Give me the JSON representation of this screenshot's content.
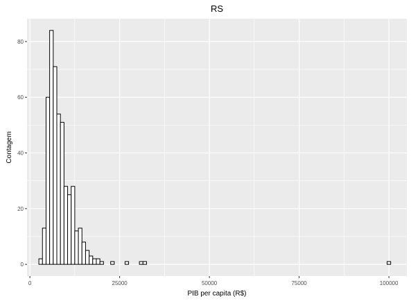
{
  "chart_data": {
    "type": "bar",
    "subtype": "histogram",
    "title": "RS",
    "xlabel": "PIB per capita (R$)",
    "ylabel": "Contagem",
    "xlim": [
      -800,
      105000
    ],
    "ylim": [
      -4.2,
      88.2
    ],
    "x_ticks": [
      0,
      25000,
      50000,
      75000,
      100000
    ],
    "x_tick_labels": [
      "0",
      "25000",
      "50000",
      "75000",
      "100000"
    ],
    "y_ticks": [
      0,
      20,
      40,
      60,
      80
    ],
    "y_tick_labels": [
      "0",
      "20",
      "40",
      "60",
      "80"
    ],
    "bin_width": 1000,
    "bins_start": [
      2500,
      3500,
      4500,
      5500,
      6500,
      7500,
      8500,
      9500,
      10500,
      11500,
      12500,
      13500,
      14500,
      15500,
      16500,
      17500,
      18500,
      19500,
      22500,
      26500,
      30500,
      31500,
      99500
    ],
    "values": [
      2,
      13,
      60,
      84,
      71,
      54,
      51,
      28,
      25,
      28,
      12,
      13,
      8,
      5,
      3,
      2,
      2,
      1,
      1,
      1,
      1,
      1,
      1
    ],
    "grid": true,
    "legend": "none",
    "colors": {
      "panel": "#ebebeb",
      "grid_major": "#ffffff",
      "bar_fill": "#ffffff",
      "bar_outline": "#000000",
      "tick_text": "#4d4d4d"
    }
  }
}
